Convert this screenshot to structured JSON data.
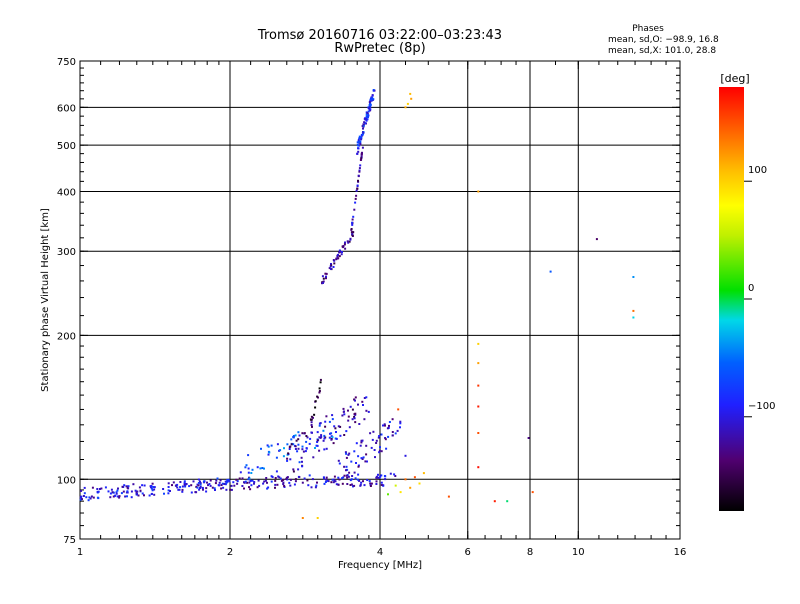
{
  "chart_data": {
    "type": "scatter",
    "title": "Tromsø 20160716 03:22:00–03:23:43",
    "subtitle": "RwPretec (8p)",
    "xlabel": "Frequency [MHz]",
    "ylabel": "Stationary phase Virtual Height [km]",
    "x_scale": "log2",
    "y_scale": "log",
    "xlim": [
      1,
      16
    ],
    "ylim": [
      75,
      750
    ],
    "x_ticks": [
      {
        "value": 1,
        "label": "1"
      },
      {
        "value": 2,
        "label": "2"
      },
      {
        "value": 4,
        "label": "4"
      },
      {
        "value": 6,
        "label": "6"
      },
      {
        "value": 8,
        "label": "8"
      },
      {
        "value": 10,
        "label": "10"
      },
      {
        "value": 16,
        "label": "16"
      }
    ],
    "y_ticks": [
      {
        "value": 75,
        "label": "75"
      },
      {
        "value": 100,
        "label": "100"
      },
      {
        "value": 200,
        "label": "200"
      },
      {
        "value": 300,
        "label": "300"
      },
      {
        "value": 400,
        "label": "400"
      },
      {
        "value": 500,
        "label": "500"
      },
      {
        "value": 600,
        "label": "600"
      },
      {
        "value": 750,
        "label": "750"
      }
    ],
    "grid_x": [
      2,
      4,
      6,
      8,
      10
    ],
    "grid_y": [
      100,
      200,
      300,
      400,
      500,
      600
    ],
    "phase_info": {
      "title": "Phases",
      "line_o": "mean, sd,O: −98.9, 16.8",
      "line_x": "mean, sd,X: 101.0, 28.8"
    },
    "colorbar": {
      "label": "[deg]",
      "min": -180,
      "max": 180,
      "ticks": [
        {
          "value": 100,
          "label": "100"
        },
        {
          "value": 0,
          "label": "0"
        },
        {
          "value": -100,
          "label": "−100"
        }
      ]
    },
    "segments": [
      {
        "f0": 1.0,
        "f1": 2.0,
        "h0": 93,
        "h1": 98,
        "n": 170,
        "phase": -100,
        "spread": 3
      },
      {
        "f0": 2.0,
        "f1": 4.3,
        "h0": 98,
        "h1": 100,
        "n": 140,
        "phase": -110,
        "spread": 3
      },
      {
        "f0": 2.1,
        "f1": 3.3,
        "h0": 103,
        "h1": 128,
        "n": 70,
        "phase": -65,
        "spread": 9
      },
      {
        "f0": 2.6,
        "f1": 3.8,
        "h0": 110,
        "h1": 145,
        "n": 90,
        "phase": -120,
        "spread": 10
      },
      {
        "f0": 3.3,
        "f1": 4.4,
        "h0": 105,
        "h1": 130,
        "n": 70,
        "phase": -105,
        "spread": 8
      },
      {
        "f0": 2.9,
        "f1": 3.05,
        "h0": 130,
        "h1": 160,
        "n": 18,
        "phase": -150,
        "spread": 3
      },
      {
        "f0": 3.05,
        "f1": 3.55,
        "h0": 258,
        "h1": 330,
        "n": 55,
        "phase": -125,
        "spread": 5
      },
      {
        "f0": 3.5,
        "f1": 3.7,
        "h0": 330,
        "h1": 500,
        "n": 35,
        "phase": -120,
        "spread": 3
      },
      {
        "f0": 3.6,
        "f1": 3.9,
        "h0": 490,
        "h1": 650,
        "n": 90,
        "phase": -90,
        "spread": 14
      }
    ],
    "points": [
      {
        "x": 4.5,
        "y": 100,
        "phase": 140
      },
      {
        "x": 4.6,
        "y": 96,
        "phase": 120
      },
      {
        "x": 4.7,
        "y": 101,
        "phase": 150
      },
      {
        "x": 4.8,
        "y": 98,
        "phase": 95
      },
      {
        "x": 4.9,
        "y": 103,
        "phase": 110
      },
      {
        "x": 4.4,
        "y": 94,
        "phase": 90
      },
      {
        "x": 4.3,
        "y": 97,
        "phase": 60
      },
      {
        "x": 4.15,
        "y": 93,
        "phase": 30
      },
      {
        "x": 4.35,
        "y": 140,
        "phase": 150
      },
      {
        "x": 4.5,
        "y": 112,
        "phase": -100
      },
      {
        "x": 4.6,
        "y": 640,
        "phase": 110
      },
      {
        "x": 4.62,
        "y": 625,
        "phase": 120
      },
      {
        "x": 4.55,
        "y": 610,
        "phase": 100
      },
      {
        "x": 4.5,
        "y": 600,
        "phase": 115
      },
      {
        "x": 2.8,
        "y": 83,
        "phase": 130
      },
      {
        "x": 3.0,
        "y": 83,
        "phase": 100
      },
      {
        "x": 5.5,
        "y": 92,
        "phase": 150
      },
      {
        "x": 6.3,
        "y": 400,
        "phase": 120
      },
      {
        "x": 6.3,
        "y": 192,
        "phase": 100
      },
      {
        "x": 6.3,
        "y": 175,
        "phase": 120
      },
      {
        "x": 6.3,
        "y": 157,
        "phase": 160
      },
      {
        "x": 6.3,
        "y": 142,
        "phase": 170
      },
      {
        "x": 6.3,
        "y": 125,
        "phase": 150
      },
      {
        "x": 6.3,
        "y": 106,
        "phase": 175
      },
      {
        "x": 6.8,
        "y": 90,
        "phase": 170
      },
      {
        "x": 7.2,
        "y": 90,
        "phase": -5
      },
      {
        "x": 7.95,
        "y": 122,
        "phase": -130
      },
      {
        "x": 8.1,
        "y": 94,
        "phase": 150
      },
      {
        "x": 8.8,
        "y": 272,
        "phase": -60
      },
      {
        "x": 10.9,
        "y": 318,
        "phase": -140
      },
      {
        "x": 12.9,
        "y": 265,
        "phase": -40
      },
      {
        "x": 12.9,
        "y": 225,
        "phase": 140
      },
      {
        "x": 12.9,
        "y": 218,
        "phase": -20
      }
    ]
  }
}
